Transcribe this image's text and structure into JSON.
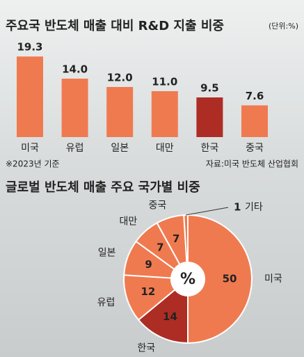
{
  "chart_data": [
    {
      "type": "bar",
      "title": "주요국 반도체 매출 대비 R&D 지출 비중",
      "unit": "(단위:%)",
      "categories": [
        "미국",
        "유럽",
        "일본",
        "대만",
        "한국",
        "중국"
      ],
      "values": [
        19.3,
        14.0,
        12.0,
        11.0,
        9.5,
        7.6
      ],
      "value_labels": [
        "19.3",
        "14.0",
        "12.0",
        "11.0",
        "9.5",
        "7.6"
      ],
      "colors": [
        "#f07a50",
        "#f07a50",
        "#f07a50",
        "#f07a50",
        "#ad2d25",
        "#f07a50"
      ],
      "note": "※2023년 기준",
      "source": "자료:미국 반도체 산업협회"
    },
    {
      "type": "pie",
      "title": "글로벌 반도체 매출 주요 국가별 비중",
      "center_label": "%",
      "categories": [
        "미국",
        "한국",
        "유럽",
        "일본",
        "대만",
        "중국",
        "기타"
      ],
      "values": [
        50,
        14,
        12,
        9,
        7,
        7,
        1
      ],
      "colors": [
        "#f07a50",
        "#ad2d25",
        "#f07a50",
        "#f07a50",
        "#f07a50",
        "#f07a50",
        "#f07a50"
      ]
    }
  ]
}
